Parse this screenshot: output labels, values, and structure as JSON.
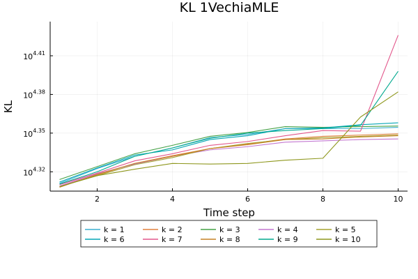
{
  "chart_data": {
    "type": "line",
    "title": "KL 1VechiaMLE",
    "xlabel": "Time step",
    "ylabel": "KL",
    "xlim": [
      0.75,
      10.25
    ],
    "ylim": [
      4.305,
      4.4365
    ],
    "x_ticks": [
      2,
      4,
      6,
      8,
      10
    ],
    "y_ticks": [
      {
        "value": 4.32,
        "base": "10",
        "exp": "4.32"
      },
      {
        "value": 4.35,
        "base": "10",
        "exp": "4.35"
      },
      {
        "value": 4.38,
        "base": "10",
        "exp": "4.38"
      },
      {
        "value": 4.41,
        "base": "10",
        "exp": "4.41"
      }
    ],
    "y_scale": "log10",
    "grid": true,
    "legend_position": "bottom",
    "legend_columns": 5,
    "x": [
      1,
      2,
      3,
      4,
      5,
      6,
      7,
      8,
      9,
      10
    ],
    "series": [
      {
        "name": "k = 1",
        "color": "#3AAFD0",
        "values": [
          4.311,
          4.3225,
          4.332,
          4.3385,
          4.3465,
          4.349,
          4.3535,
          4.3535,
          4.3535,
          4.3545
        ]
      },
      {
        "name": "k = 2",
        "color": "#E0813E",
        "values": [
          4.3088,
          4.3175,
          4.3265,
          4.3325,
          4.338,
          4.3415,
          4.3455,
          4.3475,
          4.3485,
          4.3495
        ]
      },
      {
        "name": "k = 3",
        "color": "#45A147",
        "values": [
          4.314,
          4.324,
          4.334,
          4.3405,
          4.3475,
          4.3505,
          4.355,
          4.3545,
          4.355,
          4.3555
        ]
      },
      {
        "name": "k = 4",
        "color": "#C377CF",
        "values": [
          4.309,
          4.3185,
          4.326,
          4.332,
          4.337,
          4.3395,
          4.343,
          4.344,
          4.345,
          4.3455
        ]
      },
      {
        "name": "k = 5",
        "color": "#A5A431",
        "values": [
          4.3085,
          4.317,
          4.3255,
          4.331,
          4.338,
          4.342,
          4.345,
          4.3465,
          4.3475,
          4.3485
        ]
      },
      {
        "name": "k = 6",
        "color": "#05A6B5",
        "values": [
          4.312,
          4.323,
          4.333,
          4.337,
          4.345,
          4.348,
          4.3535,
          4.354,
          4.3565,
          4.358
        ]
      },
      {
        "name": "k = 7",
        "color": "#E2568B",
        "values": [
          4.31,
          4.319,
          4.3285,
          4.334,
          4.3405,
          4.3435,
          4.348,
          4.352,
          4.3515,
          4.426
        ]
      },
      {
        "name": "k = 8",
        "color": "#C68125",
        "values": [
          4.308,
          4.318,
          4.3265,
          4.332,
          4.338,
          4.341,
          4.345,
          4.3455,
          4.347,
          4.348
        ]
      },
      {
        "name": "k = 9",
        "color": "#00A98E",
        "values": [
          4.3105,
          4.32,
          4.332,
          4.3385,
          4.346,
          4.35,
          4.352,
          4.3535,
          4.356,
          4.398
        ]
      },
      {
        "name": "k = 10",
        "color": "#8E971D",
        "values": [
          4.3085,
          4.317,
          4.322,
          4.3265,
          4.326,
          4.3265,
          4.329,
          4.3305,
          4.3625,
          4.382
        ]
      }
    ]
  }
}
